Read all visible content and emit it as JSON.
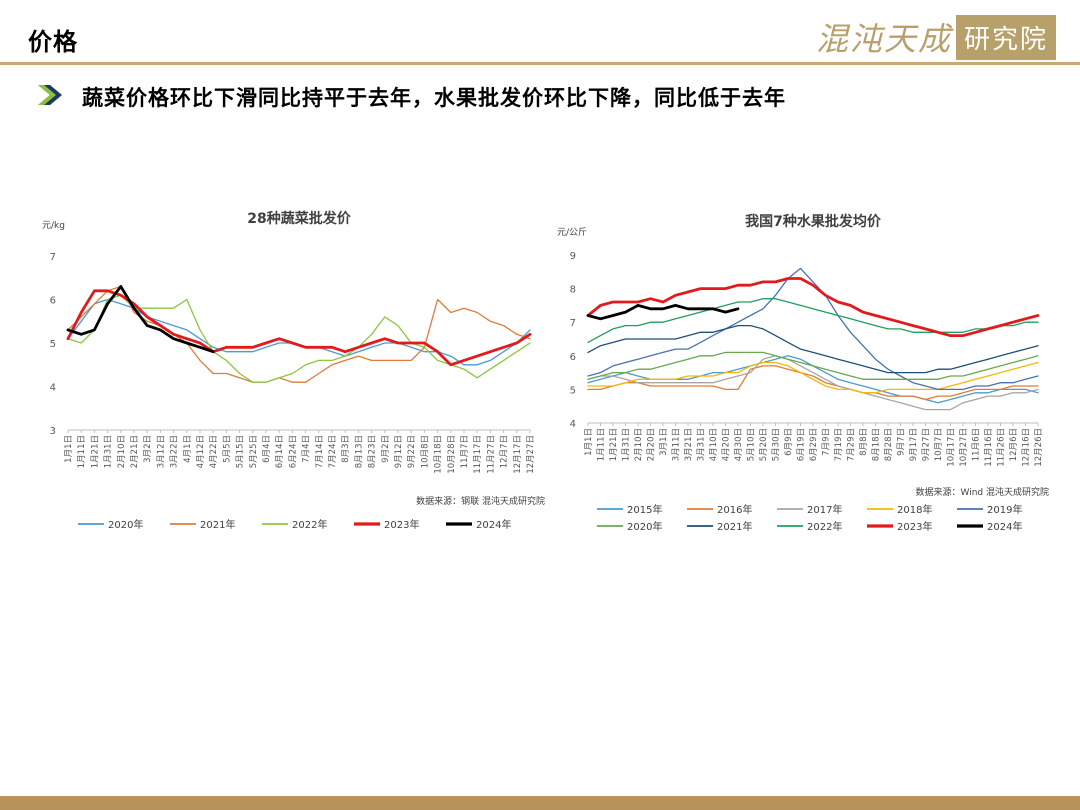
{
  "header": {
    "title": "价格",
    "logo_script": "混沌天成",
    "logo_box": "研究院"
  },
  "headline": "蔬菜价格环比下滑同比持平于去年，水果批发价环比下降，同比低于去年",
  "colors": {
    "rule": "#c8aa74",
    "arrow_dark": "#1f3a5f",
    "arrow_light": "#8cbf3f",
    "bottom_bar": "#b8935a"
  },
  "chart_data": [
    {
      "type": "line",
      "title": "28种蔬菜批发价",
      "ylabel": "元/kg",
      "ylim": [
        3,
        7
      ],
      "yticks": [
        "3",
        "4",
        "5",
        "6",
        "7"
      ],
      "x_ticks": [
        "1月1日",
        "1月11日",
        "1月21日",
        "1月31日",
        "2月10日",
        "2月21日",
        "3月2日",
        "3月12日",
        "3月22日",
        "4月1日",
        "4月12日",
        "4月22日",
        "5月5日",
        "5月15日",
        "5月25日",
        "6月4日",
        "6月14日",
        "6月24日",
        "7月4日",
        "7月14日",
        "7月24日",
        "8月3日",
        "8月13日",
        "8月23日",
        "9月2日",
        "9月12日",
        "9月22日",
        "10月8日",
        "10月18日",
        "10月28日",
        "11月7日",
        "11月17日",
        "11月27日",
        "12月7日",
        "12月17日",
        "12月27日"
      ],
      "source": "数据来源：钢联  混沌天成研究院",
      "series": [
        {
          "name": "2020年",
          "color": "#4a9bd1",
          "width": 1.3,
          "values": [
            5.1,
            5.5,
            5.9,
            6.0,
            5.9,
            5.8,
            5.6,
            5.5,
            5.4,
            5.3,
            5.1,
            4.9,
            4.8,
            4.8,
            4.8,
            4.9,
            5.0,
            5.0,
            4.9,
            4.9,
            4.8,
            4.7,
            4.8,
            4.9,
            5.0,
            5.0,
            4.9,
            4.8,
            4.8,
            4.7,
            4.5,
            4.5,
            4.6,
            4.8,
            5.0,
            5.3
          ]
        },
        {
          "name": "2021年",
          "color": "#e07b39",
          "width": 1.3,
          "values": [
            5.3,
            5.6,
            5.9,
            6.2,
            6.3,
            5.7,
            5.5,
            5.4,
            5.2,
            5.0,
            4.6,
            4.3,
            4.3,
            4.2,
            4.1,
            4.1,
            4.2,
            4.1,
            4.1,
            4.3,
            4.5,
            4.6,
            4.7,
            4.6,
            4.6,
            4.6,
            4.6,
            4.9,
            6.0,
            5.7,
            5.8,
            5.7,
            5.5,
            5.4,
            5.2,
            5.1
          ]
        },
        {
          "name": "2022年",
          "color": "#8dc63f",
          "width": 1.3,
          "values": [
            5.1,
            5.0,
            5.3,
            6.0,
            6.1,
            5.8,
            5.8,
            5.8,
            5.8,
            6.0,
            5.3,
            4.8,
            4.6,
            4.3,
            4.1,
            4.1,
            4.2,
            4.3,
            4.5,
            4.6,
            4.6,
            4.7,
            4.9,
            5.2,
            5.6,
            5.4,
            5.0,
            4.9,
            4.6,
            4.5,
            4.4,
            4.2,
            4.4,
            4.6,
            4.8,
            5.0
          ]
        },
        {
          "name": "2023年",
          "color": "#e31a1c",
          "width": 2.8,
          "values": [
            5.1,
            5.7,
            6.2,
            6.2,
            6.1,
            5.9,
            5.6,
            5.4,
            5.2,
            5.1,
            5.0,
            4.8,
            4.9,
            4.9,
            4.9,
            5.0,
            5.1,
            5.0,
            4.9,
            4.9,
            4.9,
            4.8,
            4.9,
            5.0,
            5.1,
            5.0,
            5.0,
            5.0,
            4.8,
            4.5,
            4.6,
            4.7,
            4.8,
            4.9,
            5.0,
            5.2
          ]
        },
        {
          "name": "2024年",
          "color": "#000000",
          "width": 2.8,
          "values": [
            5.3,
            5.2,
            5.3,
            5.9,
            6.3,
            5.8,
            5.4,
            5.3,
            5.1,
            5.0,
            4.9,
            4.8
          ]
        }
      ]
    },
    {
      "type": "line",
      "title": "我国7种水果批发均价",
      "ylabel": "元/公斤",
      "ylim": [
        4,
        9
      ],
      "yticks": [
        "4",
        "5",
        "6",
        "7",
        "8",
        "9"
      ],
      "x_ticks": [
        "1月1日",
        "1月11日",
        "1月21日",
        "1月31日",
        "2月10日",
        "2月20日",
        "3月1日",
        "3月11日",
        "3月21日",
        "3月31日",
        "4月10日",
        "4月20日",
        "4月30日",
        "5月10日",
        "5月20日",
        "5月30日",
        "6月9日",
        "6月19日",
        "6月29日",
        "7月9日",
        "7月19日",
        "7月29日",
        "8月8日",
        "8月18日",
        "8月28日",
        "9月7日",
        "9月17日",
        "9月27日",
        "10月7日",
        "10月17日",
        "10月27日",
        "11月6日",
        "11月16日",
        "11月26日",
        "12月6日",
        "12月16日",
        "12月26日"
      ],
      "source": "数据来源：Wind  混沌天成研究院",
      "series": [
        {
          "name": "2015年",
          "color": "#4a9bd1",
          "width": 1.3,
          "values": [
            5.2,
            5.3,
            5.4,
            5.5,
            5.4,
            5.3,
            5.3,
            5.3,
            5.3,
            5.4,
            5.5,
            5.5,
            5.6,
            5.7,
            5.8,
            5.9,
            6.0,
            5.9,
            5.7,
            5.5,
            5.3,
            5.2,
            5.1,
            5.0,
            4.9,
            4.8,
            4.8,
            4.7,
            4.6,
            4.7,
            4.8,
            4.9,
            4.9,
            5.0,
            5.0,
            5.0,
            4.9
          ]
        },
        {
          "name": "2016年",
          "color": "#e07b39",
          "width": 1.3,
          "values": [
            5.0,
            5.0,
            5.1,
            5.2,
            5.2,
            5.1,
            5.1,
            5.1,
            5.1,
            5.1,
            5.1,
            5.0,
            5.0,
            5.6,
            5.7,
            5.7,
            5.6,
            5.5,
            5.4,
            5.2,
            5.1,
            5.0,
            4.9,
            4.9,
            4.8,
            4.8,
            4.8,
            4.7,
            4.8,
            4.8,
            4.9,
            5.0,
            5.0,
            5.0,
            5.1,
            5.1,
            5.1
          ]
        },
        {
          "name": "2017年",
          "color": "#a6a6a6",
          "width": 1.3,
          "values": [
            5.3,
            5.4,
            5.4,
            5.3,
            5.2,
            5.2,
            5.2,
            5.2,
            5.2,
            5.2,
            5.2,
            5.3,
            5.4,
            5.5,
            5.9,
            6.0,
            5.9,
            5.7,
            5.5,
            5.3,
            5.1,
            5.0,
            4.9,
            4.8,
            4.7,
            4.6,
            4.5,
            4.4,
            4.4,
            4.4,
            4.6,
            4.7,
            4.8,
            4.8,
            4.9,
            4.9,
            5.0
          ]
        },
        {
          "name": "2018年",
          "color": "#f5b800",
          "width": 1.3,
          "values": [
            5.1,
            5.1,
            5.1,
            5.2,
            5.3,
            5.3,
            5.3,
            5.3,
            5.4,
            5.4,
            5.4,
            5.5,
            5.5,
            5.7,
            5.8,
            5.8,
            5.7,
            5.5,
            5.3,
            5.1,
            5.0,
            5.0,
            4.9,
            4.9,
            5.0,
            5.0,
            5.0,
            5.0,
            5.0,
            5.1,
            5.2,
            5.3,
            5.4,
            5.5,
            5.6,
            5.7,
            5.8
          ]
        },
        {
          "name": "2019年",
          "color": "#4a6fb5",
          "width": 1.3,
          "values": [
            5.4,
            5.5,
            5.7,
            5.8,
            5.9,
            6.0,
            6.1,
            6.2,
            6.2,
            6.4,
            6.6,
            6.8,
            7.0,
            7.2,
            7.4,
            7.8,
            8.3,
            8.6,
            8.2,
            7.8,
            7.2,
            6.7,
            6.3,
            5.9,
            5.6,
            5.4,
            5.2,
            5.1,
            5.0,
            5.0,
            5.0,
            5.1,
            5.1,
            5.2,
            5.2,
            5.3,
            5.4
          ]
        },
        {
          "name": "2020年",
          "color": "#6aa84f",
          "width": 1.3,
          "values": [
            5.3,
            5.4,
            5.5,
            5.5,
            5.6,
            5.6,
            5.7,
            5.8,
            5.9,
            6.0,
            6.0,
            6.1,
            6.1,
            6.1,
            6.1,
            6.0,
            5.9,
            5.8,
            5.7,
            5.6,
            5.5,
            5.4,
            5.3,
            5.3,
            5.3,
            5.3,
            5.3,
            5.3,
            5.3,
            5.4,
            5.4,
            5.5,
            5.6,
            5.7,
            5.8,
            5.9,
            6.0
          ]
        },
        {
          "name": "2021年",
          "color": "#1f4e79",
          "width": 1.3,
          "values": [
            6.1,
            6.3,
            6.4,
            6.5,
            6.5,
            6.5,
            6.5,
            6.5,
            6.6,
            6.7,
            6.7,
            6.8,
            6.9,
            6.9,
            6.8,
            6.6,
            6.4,
            6.2,
            6.1,
            6.0,
            5.9,
            5.8,
            5.7,
            5.6,
            5.5,
            5.5,
            5.5,
            5.5,
            5.6,
            5.6,
            5.7,
            5.8,
            5.9,
            6.0,
            6.1,
            6.2,
            6.3
          ]
        },
        {
          "name": "2022年",
          "color": "#1f9e5f",
          "width": 1.3,
          "values": [
            6.4,
            6.6,
            6.8,
            6.9,
            6.9,
            7.0,
            7.0,
            7.1,
            7.2,
            7.3,
            7.4,
            7.5,
            7.6,
            7.6,
            7.7,
            7.7,
            7.6,
            7.5,
            7.4,
            7.3,
            7.2,
            7.1,
            7.0,
            6.9,
            6.8,
            6.8,
            6.7,
            6.7,
            6.7,
            6.7,
            6.7,
            6.8,
            6.8,
            6.9,
            6.9,
            7.0,
            7.0
          ]
        },
        {
          "name": "2023年",
          "color": "#e31a1c",
          "width": 2.8,
          "values": [
            7.2,
            7.5,
            7.6,
            7.6,
            7.6,
            7.7,
            7.6,
            7.8,
            7.9,
            8.0,
            8.0,
            8.0,
            8.1,
            8.1,
            8.2,
            8.2,
            8.3,
            8.3,
            8.1,
            7.8,
            7.6,
            7.5,
            7.3,
            7.2,
            7.1,
            7.0,
            6.9,
            6.8,
            6.7,
            6.6,
            6.6,
            6.7,
            6.8,
            6.9,
            7.0,
            7.1,
            7.2
          ]
        },
        {
          "name": "2024年",
          "color": "#000000",
          "width": 2.8,
          "values": [
            7.2,
            7.1,
            7.2,
            7.3,
            7.5,
            7.4,
            7.4,
            7.5,
            7.4,
            7.4,
            7.4,
            7.3,
            7.4
          ]
        }
      ]
    }
  ]
}
